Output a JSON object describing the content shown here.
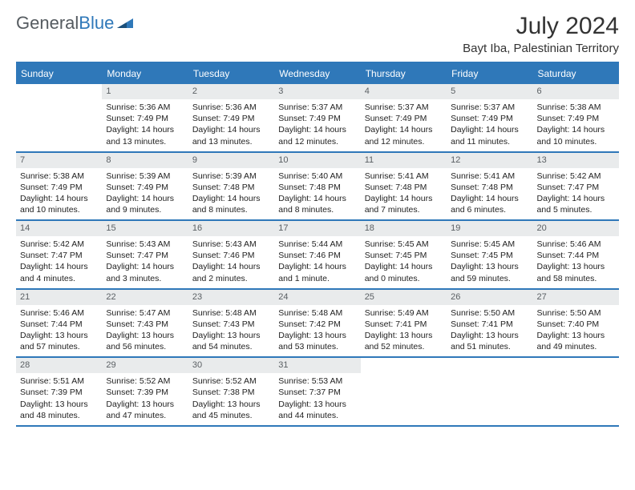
{
  "brand": {
    "name_gray": "General",
    "name_blue": "Blue"
  },
  "title": "July 2024",
  "location": "Bayt Iba, Palestinian Territory",
  "colors": {
    "accent": "#2f78b9",
    "daynum_bg": "#e9ebec",
    "daynum_text": "#5a5f63",
    "text": "#222222",
    "background": "#ffffff"
  },
  "day_headers": [
    "Sunday",
    "Monday",
    "Tuesday",
    "Wednesday",
    "Thursday",
    "Friday",
    "Saturday"
  ],
  "weeks": [
    [
      {
        "empty": true
      },
      {
        "day": "1",
        "sunrise": "Sunrise: 5:36 AM",
        "sunset": "Sunset: 7:49 PM",
        "daylight": "Daylight: 14 hours and 13 minutes."
      },
      {
        "day": "2",
        "sunrise": "Sunrise: 5:36 AM",
        "sunset": "Sunset: 7:49 PM",
        "daylight": "Daylight: 14 hours and 13 minutes."
      },
      {
        "day": "3",
        "sunrise": "Sunrise: 5:37 AM",
        "sunset": "Sunset: 7:49 PM",
        "daylight": "Daylight: 14 hours and 12 minutes."
      },
      {
        "day": "4",
        "sunrise": "Sunrise: 5:37 AM",
        "sunset": "Sunset: 7:49 PM",
        "daylight": "Daylight: 14 hours and 12 minutes."
      },
      {
        "day": "5",
        "sunrise": "Sunrise: 5:37 AM",
        "sunset": "Sunset: 7:49 PM",
        "daylight": "Daylight: 14 hours and 11 minutes."
      },
      {
        "day": "6",
        "sunrise": "Sunrise: 5:38 AM",
        "sunset": "Sunset: 7:49 PM",
        "daylight": "Daylight: 14 hours and 10 minutes."
      }
    ],
    [
      {
        "day": "7",
        "sunrise": "Sunrise: 5:38 AM",
        "sunset": "Sunset: 7:49 PM",
        "daylight": "Daylight: 14 hours and 10 minutes."
      },
      {
        "day": "8",
        "sunrise": "Sunrise: 5:39 AM",
        "sunset": "Sunset: 7:49 PM",
        "daylight": "Daylight: 14 hours and 9 minutes."
      },
      {
        "day": "9",
        "sunrise": "Sunrise: 5:39 AM",
        "sunset": "Sunset: 7:48 PM",
        "daylight": "Daylight: 14 hours and 8 minutes."
      },
      {
        "day": "10",
        "sunrise": "Sunrise: 5:40 AM",
        "sunset": "Sunset: 7:48 PM",
        "daylight": "Daylight: 14 hours and 8 minutes."
      },
      {
        "day": "11",
        "sunrise": "Sunrise: 5:41 AM",
        "sunset": "Sunset: 7:48 PM",
        "daylight": "Daylight: 14 hours and 7 minutes."
      },
      {
        "day": "12",
        "sunrise": "Sunrise: 5:41 AM",
        "sunset": "Sunset: 7:48 PM",
        "daylight": "Daylight: 14 hours and 6 minutes."
      },
      {
        "day": "13",
        "sunrise": "Sunrise: 5:42 AM",
        "sunset": "Sunset: 7:47 PM",
        "daylight": "Daylight: 14 hours and 5 minutes."
      }
    ],
    [
      {
        "day": "14",
        "sunrise": "Sunrise: 5:42 AM",
        "sunset": "Sunset: 7:47 PM",
        "daylight": "Daylight: 14 hours and 4 minutes."
      },
      {
        "day": "15",
        "sunrise": "Sunrise: 5:43 AM",
        "sunset": "Sunset: 7:47 PM",
        "daylight": "Daylight: 14 hours and 3 minutes."
      },
      {
        "day": "16",
        "sunrise": "Sunrise: 5:43 AM",
        "sunset": "Sunset: 7:46 PM",
        "daylight": "Daylight: 14 hours and 2 minutes."
      },
      {
        "day": "17",
        "sunrise": "Sunrise: 5:44 AM",
        "sunset": "Sunset: 7:46 PM",
        "daylight": "Daylight: 14 hours and 1 minute."
      },
      {
        "day": "18",
        "sunrise": "Sunrise: 5:45 AM",
        "sunset": "Sunset: 7:45 PM",
        "daylight": "Daylight: 14 hours and 0 minutes."
      },
      {
        "day": "19",
        "sunrise": "Sunrise: 5:45 AM",
        "sunset": "Sunset: 7:45 PM",
        "daylight": "Daylight: 13 hours and 59 minutes."
      },
      {
        "day": "20",
        "sunrise": "Sunrise: 5:46 AM",
        "sunset": "Sunset: 7:44 PM",
        "daylight": "Daylight: 13 hours and 58 minutes."
      }
    ],
    [
      {
        "day": "21",
        "sunrise": "Sunrise: 5:46 AM",
        "sunset": "Sunset: 7:44 PM",
        "daylight": "Daylight: 13 hours and 57 minutes."
      },
      {
        "day": "22",
        "sunrise": "Sunrise: 5:47 AM",
        "sunset": "Sunset: 7:43 PM",
        "daylight": "Daylight: 13 hours and 56 minutes."
      },
      {
        "day": "23",
        "sunrise": "Sunrise: 5:48 AM",
        "sunset": "Sunset: 7:43 PM",
        "daylight": "Daylight: 13 hours and 54 minutes."
      },
      {
        "day": "24",
        "sunrise": "Sunrise: 5:48 AM",
        "sunset": "Sunset: 7:42 PM",
        "daylight": "Daylight: 13 hours and 53 minutes."
      },
      {
        "day": "25",
        "sunrise": "Sunrise: 5:49 AM",
        "sunset": "Sunset: 7:41 PM",
        "daylight": "Daylight: 13 hours and 52 minutes."
      },
      {
        "day": "26",
        "sunrise": "Sunrise: 5:50 AM",
        "sunset": "Sunset: 7:41 PM",
        "daylight": "Daylight: 13 hours and 51 minutes."
      },
      {
        "day": "27",
        "sunrise": "Sunrise: 5:50 AM",
        "sunset": "Sunset: 7:40 PM",
        "daylight": "Daylight: 13 hours and 49 minutes."
      }
    ],
    [
      {
        "day": "28",
        "sunrise": "Sunrise: 5:51 AM",
        "sunset": "Sunset: 7:39 PM",
        "daylight": "Daylight: 13 hours and 48 minutes."
      },
      {
        "day": "29",
        "sunrise": "Sunrise: 5:52 AM",
        "sunset": "Sunset: 7:39 PM",
        "daylight": "Daylight: 13 hours and 47 minutes."
      },
      {
        "day": "30",
        "sunrise": "Sunrise: 5:52 AM",
        "sunset": "Sunset: 7:38 PM",
        "daylight": "Daylight: 13 hours and 45 minutes."
      },
      {
        "day": "31",
        "sunrise": "Sunrise: 5:53 AM",
        "sunset": "Sunset: 7:37 PM",
        "daylight": "Daylight: 13 hours and 44 minutes."
      },
      {
        "empty": true
      },
      {
        "empty": true
      },
      {
        "empty": true
      }
    ]
  ]
}
